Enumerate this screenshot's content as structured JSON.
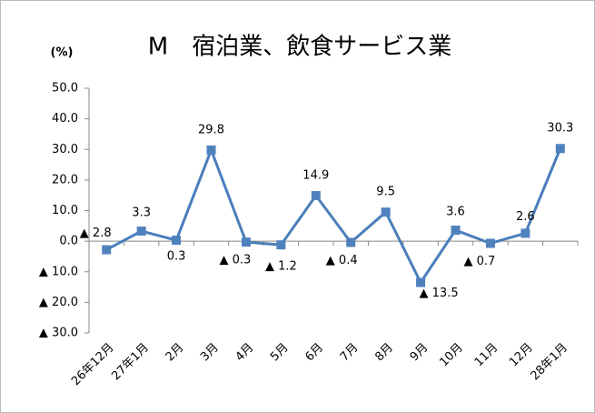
{
  "chart_data": {
    "type": "line",
    "title": "M　宿泊業、飲食サービス業",
    "y_label": "(%)",
    "categories": [
      "26年12月",
      "27年1月",
      "2月",
      "3月",
      "4月",
      "5月",
      "6月",
      "7月",
      "8月",
      "9月",
      "10月",
      "11月",
      "12月",
      "28年1月"
    ],
    "series": [
      {
        "name": "宿泊業、飲食サービス業",
        "color": "#4a7ebb",
        "values": [
          -2.8,
          3.3,
          0.3,
          29.8,
          -0.3,
          -1.2,
          14.9,
          -0.4,
          9.5,
          -13.5,
          3.6,
          -0.7,
          2.6,
          30.3
        ],
        "value_labels": [
          "▲ 2.8",
          "3.3",
          "0.3",
          "29.8",
          "▲ 0.3",
          "▲ 1.2",
          "14.9",
          "▲ 0.4",
          "9.5",
          "▲ 13.5",
          "3.6",
          "▲ 0.7",
          "2.6",
          "30.3"
        ]
      }
    ],
    "ylim": [
      -30,
      50
    ],
    "yticks": [
      {
        "value": 50,
        "label": "50.0"
      },
      {
        "value": 40,
        "label": "40.0"
      },
      {
        "value": 30,
        "label": "30.0"
      },
      {
        "value": 20,
        "label": "20.0"
      },
      {
        "value": 10,
        "label": "10.0"
      },
      {
        "value": 0,
        "label": "0.0"
      },
      {
        "value": -10,
        "label": "▲ 10.0"
      },
      {
        "value": -20,
        "label": "▲ 20.0"
      },
      {
        "value": -30,
        "label": "▲ 30.0"
      }
    ],
    "grid": false
  }
}
